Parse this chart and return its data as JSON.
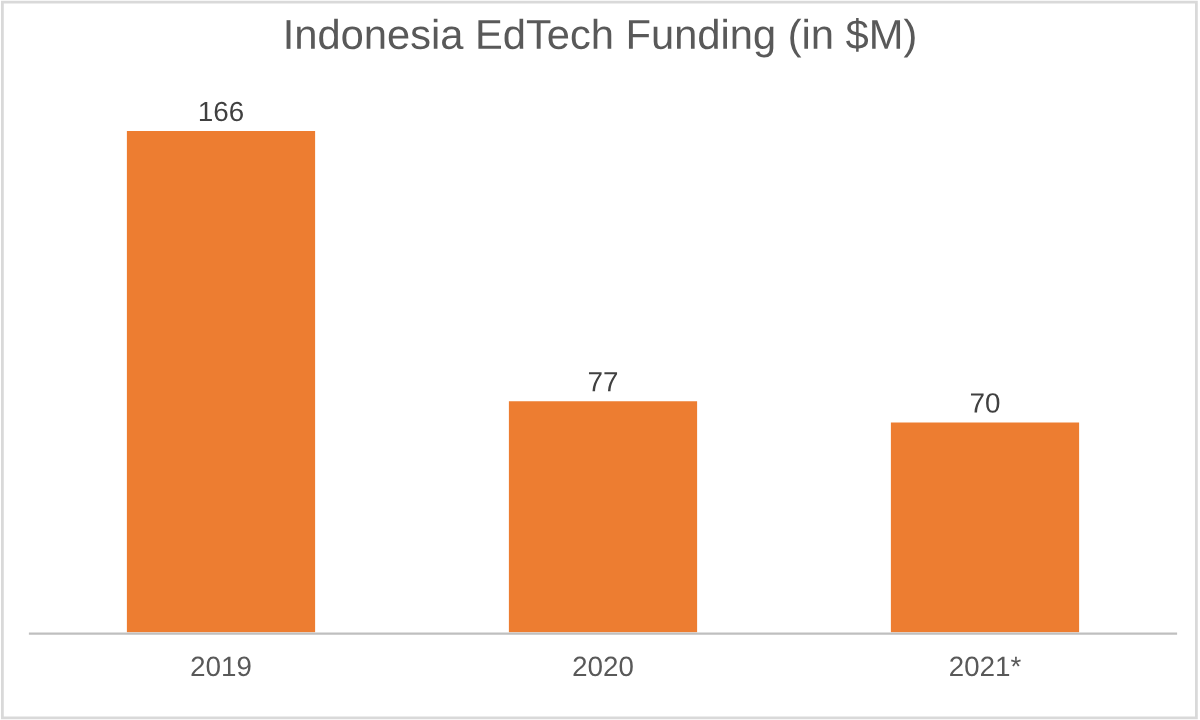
{
  "chart_data": {
    "type": "bar",
    "title": "Indonesia EdTech Funding (in $M)",
    "categories": [
      "2019",
      "2020",
      "2021*"
    ],
    "values": [
      166,
      77,
      70
    ],
    "color": "#ed7d31",
    "data_labels": true
  }
}
